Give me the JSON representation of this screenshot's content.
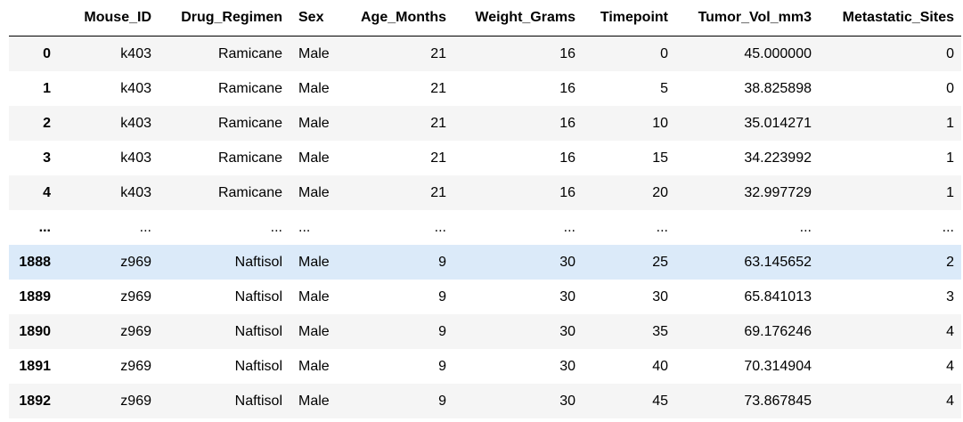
{
  "columns": [
    "",
    "Mouse_ID",
    "Drug_Regimen",
    "Sex",
    "Age_Months",
    "Weight_Grams",
    "Timepoint",
    "Tumor_Vol_mm3",
    "Metastatic_Sites"
  ],
  "rows": [
    {
      "index": "0",
      "cells": [
        "k403",
        "Ramicane",
        "Male",
        "21",
        "16",
        "0",
        "45.000000",
        "0"
      ]
    },
    {
      "index": "1",
      "cells": [
        "k403",
        "Ramicane",
        "Male",
        "21",
        "16",
        "5",
        "38.825898",
        "0"
      ]
    },
    {
      "index": "2",
      "cells": [
        "k403",
        "Ramicane",
        "Male",
        "21",
        "16",
        "10",
        "35.014271",
        "1"
      ]
    },
    {
      "index": "3",
      "cells": [
        "k403",
        "Ramicane",
        "Male",
        "21",
        "16",
        "15",
        "34.223992",
        "1"
      ]
    },
    {
      "index": "4",
      "cells": [
        "k403",
        "Ramicane",
        "Male",
        "21",
        "16",
        "20",
        "32.997729",
        "1"
      ]
    },
    {
      "index": "...",
      "cells": [
        "...",
        "...",
        "...",
        "...",
        "...",
        "...",
        "...",
        "..."
      ]
    },
    {
      "index": "1888",
      "cells": [
        "z969",
        "Naftisol",
        "Male",
        "9",
        "30",
        "25",
        "63.145652",
        "2"
      ]
    },
    {
      "index": "1889",
      "cells": [
        "z969",
        "Naftisol",
        "Male",
        "9",
        "30",
        "30",
        "65.841013",
        "3"
      ]
    },
    {
      "index": "1890",
      "cells": [
        "z969",
        "Naftisol",
        "Male",
        "9",
        "30",
        "35",
        "69.176246",
        "4"
      ]
    },
    {
      "index": "1891",
      "cells": [
        "z969",
        "Naftisol",
        "Male",
        "9",
        "30",
        "40",
        "70.314904",
        "4"
      ]
    },
    {
      "index": "1892",
      "cells": [
        "z969",
        "Naftisol",
        "Male",
        "9",
        "30",
        "45",
        "73.867845",
        "4"
      ]
    }
  ],
  "highlighted_row": "1888",
  "colors": {
    "stripe": "#f5f5f5",
    "hover": "#dbeaf9",
    "header_border": "#000000"
  }
}
